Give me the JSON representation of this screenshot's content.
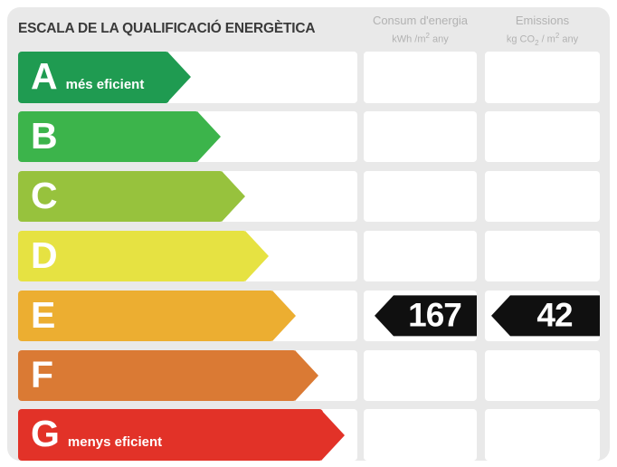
{
  "title": "ESCALA DE LA QUALIFICACIÓ ENERGÈTICA",
  "columns": {
    "consumption": {
      "title": "Consum d'energia",
      "unit_pre": "kWh /m",
      "unit_sup": "2",
      "unit_post": " any"
    },
    "emissions": {
      "title": "Emissions",
      "unit_pre": "kg CO",
      "unit_sub": "2",
      "unit_mid": " / m",
      "unit_sup": "2",
      "unit_post": " any"
    }
  },
  "scale": {
    "rows": [
      {
        "letter": "A",
        "label": "més eficient",
        "color": "#1f9b51",
        "arrow_width_pct": 44.5,
        "consumption": "",
        "emissions": ""
      },
      {
        "letter": "B",
        "label": "",
        "color": "#3cb44b",
        "arrow_width_pct": 53.3,
        "consumption": "",
        "emissions": ""
      },
      {
        "letter": "C",
        "label": "",
        "color": "#97c23d",
        "arrow_width_pct": 60.5,
        "consumption": "",
        "emissions": ""
      },
      {
        "letter": "D",
        "label": "",
        "color": "#e6e242",
        "arrow_width_pct": 67.5,
        "consumption": "",
        "emissions": ""
      },
      {
        "letter": "E",
        "label": "",
        "color": "#ecae31",
        "arrow_width_pct": 75.5,
        "consumption": "167",
        "emissions": "42"
      },
      {
        "letter": "F",
        "label": "",
        "color": "#da7a34",
        "arrow_width_pct": 82.1,
        "consumption": "",
        "emissions": ""
      },
      {
        "letter": "G",
        "label": "menys eficient",
        "color": "#e23228",
        "arrow_width_pct": 89.9,
        "consumption": "",
        "emissions": ""
      }
    ]
  },
  "rating": {
    "letter": "E",
    "consumption_value": "167",
    "emissions_value": "42",
    "badge_color": "#101010",
    "badge_text_color": "#ffffff"
  },
  "chart_data": {
    "type": "bar",
    "title": "ESCALA DE LA QUALIFICACIÓ ENERGÈTICA",
    "categories": [
      "A",
      "B",
      "C",
      "D",
      "E",
      "F",
      "G"
    ],
    "values": [
      44.5,
      53.3,
      60.5,
      67.5,
      75.5,
      82.1,
      89.9
    ],
    "category_labels": [
      "A més eficient",
      "B",
      "C",
      "D",
      "E",
      "F",
      "G menys eficient"
    ],
    "colors": [
      "#1f9b51",
      "#3cb44b",
      "#97c23d",
      "#e6e242",
      "#ecae31",
      "#da7a34",
      "#e23228"
    ],
    "series": [
      {
        "name": "Consum d'energia (kWh/m2 any)",
        "values": [
          null,
          null,
          null,
          null,
          167,
          null,
          null
        ]
      },
      {
        "name": "Emissions (kg CO2/m2 any)",
        "values": [
          null,
          null,
          null,
          null,
          42,
          null,
          null
        ]
      }
    ],
    "annotations": [
      "Rated class: E",
      "Consum d'energia: 167 kWh/m2 any",
      "Emissions: 42 kg CO2/m2 any"
    ],
    "xlabel": "",
    "ylabel": "",
    "legend_position": "top",
    "grid": false
  }
}
